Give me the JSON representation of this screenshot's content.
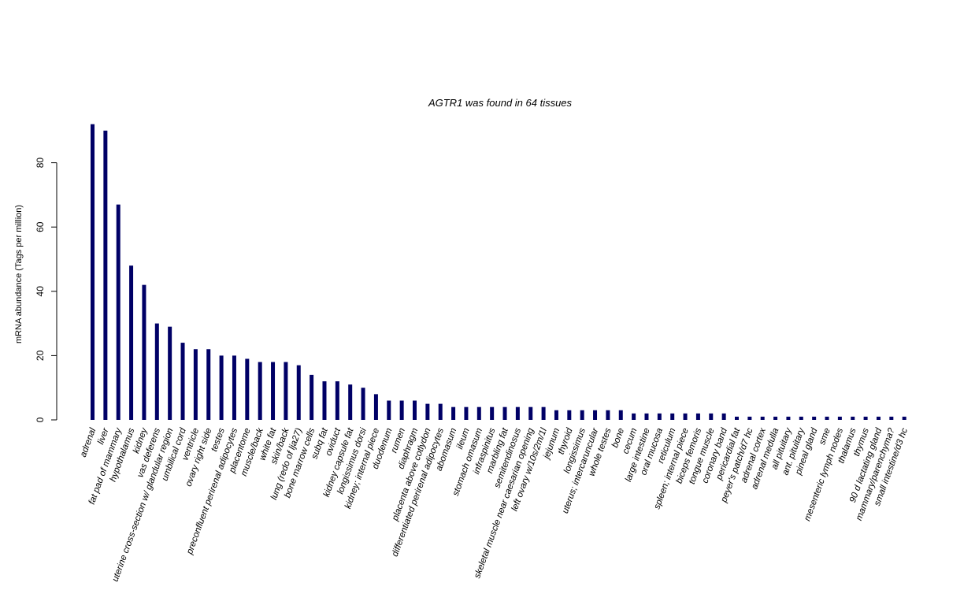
{
  "chart_data": {
    "type": "bar",
    "title": "AGTR1  was found in  64  tissues",
    "xlabel": "",
    "ylabel": "mRNA abundance (Tags per million)",
    "ylim": [
      0,
      92
    ],
    "yticks": [
      0,
      20,
      40,
      60,
      80
    ],
    "bar_color": "#000066",
    "grid": false,
    "legend": "none",
    "categories": [
      "adrenal",
      "liver",
      "fat pad of mammary",
      "hypothalamus",
      "kidney",
      "vas deferens",
      "uterine cross-section w/ glandular region",
      "umbilical cord",
      "ventricle",
      "ovary right side",
      "testes",
      "preconfluent perirenal adipocytes",
      "placentome",
      "muscle/back",
      "white fat",
      "skin/back",
      "lung (redo of lja27)",
      "bone marrow cells",
      "subq fat",
      "oviduct",
      "kidney capsule fat",
      "longissimus dorsi",
      "kidney; internal piece",
      "duodenum",
      "rumen",
      "diaphragm",
      "placenta above cotlydon",
      "differentiated perirenal adipocytes",
      "abomasum",
      "ileum",
      "stomach omasum",
      "infraspinitus",
      "marbling fat",
      "semitendinosus",
      "skeletal muscle near caesarian opening",
      "left ovary w/10s/2m/1l",
      "jejunum",
      "thyroid",
      "longissimus",
      "uterus; intercaruncular",
      "whole testes",
      "bone",
      "cecum",
      "large intestine",
      "oral mucosa",
      "reticulum",
      "spleen; internal piece",
      "biceps femoris",
      "tongue muscle",
      "coronary band",
      "pericardial fat",
      "peyer's patch/d7 hc",
      "adrenal cortex",
      "adrenal medulla",
      "all pituitary",
      "ant. pituitary",
      "pineal gland",
      "sme",
      "mesenteric lymph nodes",
      "thalamus",
      "thymus",
      "90 d lactating gland",
      "mammary/parenchyma?",
      "small intestine/d3 hc"
    ],
    "values": [
      92,
      90,
      67,
      48,
      42,
      30,
      29,
      24,
      22,
      22,
      20,
      20,
      19,
      18,
      18,
      18,
      17,
      14,
      12,
      12,
      11,
      10,
      8,
      6,
      6,
      6,
      5,
      5,
      4,
      4,
      4,
      4,
      4,
      4,
      4,
      4,
      3,
      3,
      3,
      3,
      3,
      3,
      2,
      2,
      2,
      2,
      2,
      2,
      2,
      2,
      1,
      1,
      1,
      1,
      1,
      1,
      1,
      1,
      1,
      1,
      1,
      1,
      1,
      1
    ]
  }
}
